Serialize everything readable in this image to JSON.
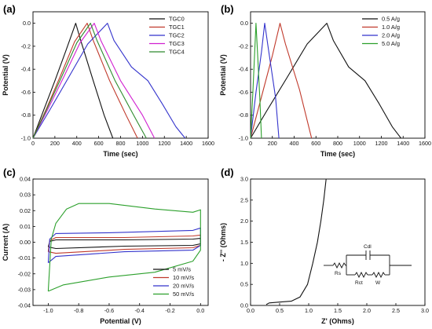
{
  "chart_data": [
    {
      "panel": "(a)",
      "type": "line",
      "xlabel": "Time (sec)",
      "ylabel": "Potential (V)",
      "xlim": [
        0,
        1600
      ],
      "ylim": [
        -1.0,
        0.1
      ],
      "xticks": [
        "0",
        "200",
        "400",
        "600",
        "800",
        "1000",
        "1200",
        "1400",
        "1600"
      ],
      "yticks": [
        "-1.0",
        "-0.8",
        "-0.6",
        "-0.4",
        "-0.2",
        "0.0"
      ],
      "legend_position": "top-right",
      "series": [
        {
          "name": "TGC0",
          "color": "#111111",
          "points": [
            [
              0,
              -1.0
            ],
            [
              100,
              -0.75
            ],
            [
              200,
              -0.5
            ],
            [
              300,
              -0.24
            ],
            [
              390,
              0.0
            ],
            [
              430,
              -0.13
            ],
            [
              550,
              -0.5
            ],
            [
              650,
              -0.8
            ],
            [
              730,
              -1.0
            ]
          ]
        },
        {
          "name": "TGC1",
          "color": "#c0392b",
          "points": [
            [
              0,
              -1.0
            ],
            [
              120,
              -0.75
            ],
            [
              250,
              -0.46
            ],
            [
              380,
              -0.16
            ],
            [
              495,
              0.0
            ],
            [
              550,
              -0.15
            ],
            [
              700,
              -0.5
            ],
            [
              850,
              -0.8
            ],
            [
              955,
              -1.0
            ]
          ]
        },
        {
          "name": "TGC2",
          "color": "#3333cc",
          "points": [
            [
              0,
              -1.0
            ],
            [
              150,
              -0.76
            ],
            [
              320,
              -0.48
            ],
            [
              500,
              -0.18
            ],
            [
              680,
              0.0
            ],
            [
              740,
              -0.15
            ],
            [
              900,
              -0.38
            ],
            [
              1050,
              -0.5
            ],
            [
              1180,
              -0.7
            ],
            [
              1305,
              -0.9
            ],
            [
              1390,
              -1.0
            ]
          ]
        },
        {
          "name": "TGC3",
          "color": "#d020d0",
          "points": [
            [
              0,
              -1.0
            ],
            [
              135,
              -0.75
            ],
            [
              280,
              -0.47
            ],
            [
              430,
              -0.17
            ],
            [
              560,
              0.0
            ],
            [
              620,
              -0.15
            ],
            [
              800,
              -0.5
            ],
            [
              1000,
              -0.8
            ],
            [
              1110,
              -1.0
            ]
          ]
        },
        {
          "name": "TGC4",
          "color": "#2e8b2e",
          "points": [
            [
              0,
              -1.0
            ],
            [
              125,
              -0.75
            ],
            [
              260,
              -0.47
            ],
            [
              400,
              -0.17
            ],
            [
              525,
              0.0
            ],
            [
              585,
              -0.15
            ],
            [
              750,
              -0.5
            ],
            [
              920,
              -0.8
            ],
            [
              1035,
              -1.0
            ]
          ]
        }
      ]
    },
    {
      "panel": "(b)",
      "type": "line",
      "xlabel": "Time (sec)",
      "ylabel": "Potential (V)",
      "xlim": [
        0,
        1600
      ],
      "ylim": [
        -1.0,
        0.1
      ],
      "xticks": [
        "0",
        "200",
        "400",
        "600",
        "800",
        "1000",
        "1200",
        "1400",
        "1600"
      ],
      "yticks": [
        "-1.0",
        "-0.8",
        "-0.6",
        "-0.4",
        "-0.2",
        "0.0"
      ],
      "legend_position": "top-right",
      "series": [
        {
          "name": "0.5 A/g",
          "color": "#111111",
          "points": [
            [
              0,
              -1.0
            ],
            [
              150,
              -0.76
            ],
            [
              330,
              -0.48
            ],
            [
              520,
              -0.18
            ],
            [
              700,
              0.0
            ],
            [
              760,
              -0.15
            ],
            [
              900,
              -0.38
            ],
            [
              1050,
              -0.5
            ],
            [
              1180,
              -0.7
            ],
            [
              1300,
              -0.9
            ],
            [
              1380,
              -1.0
            ]
          ]
        },
        {
          "name": "1.0 A/g",
          "color": "#c0392b",
          "points": [
            [
              0,
              -1.0
            ],
            [
              100,
              -0.64
            ],
            [
              200,
              -0.28
            ],
            [
              270,
              0.0
            ],
            [
              320,
              -0.18
            ],
            [
              450,
              -0.58
            ],
            [
              560,
              -1.0
            ]
          ]
        },
        {
          "name": "2.0 A/g",
          "color": "#3333cc",
          "points": [
            [
              0,
              -1.0
            ],
            [
              50,
              -0.6
            ],
            [
              100,
              -0.25
            ],
            [
              130,
              0.0
            ],
            [
              160,
              -0.2
            ],
            [
              230,
              -0.65
            ],
            [
              260,
              -1.0
            ]
          ]
        },
        {
          "name": "5.0 A/g",
          "color": "#2ca02c",
          "points": [
            [
              0,
              -1.0
            ],
            [
              20,
              -0.62
            ],
            [
              40,
              -0.2
            ],
            [
              50,
              0.0
            ],
            [
              62,
              -0.22
            ],
            [
              85,
              -0.65
            ],
            [
              100,
              -1.0
            ]
          ]
        }
      ]
    },
    {
      "panel": "(c)",
      "type": "line",
      "xlabel": "Potential (V)",
      "ylabel": "Current (A)",
      "xlim": [
        -1.1,
        0.05
      ],
      "ylim": [
        -0.04,
        0.04
      ],
      "xticks": [
        "-1.0",
        "-0.8",
        "-0.6",
        "-0.4",
        "-0.2",
        "0.0"
      ],
      "yticks": [
        "-0.04",
        "-0.03",
        "-0.02",
        "-0.01",
        "0.00",
        "0.01",
        "0.02",
        "0.03",
        "0.04"
      ],
      "legend_position": "bottom-right",
      "series": [
        {
          "name": "5 mV/s",
          "color": "#111111",
          "points": [
            [
              -1.0,
              -0.003
            ],
            [
              -0.99,
              0.0005
            ],
            [
              -0.95,
              0.0015
            ],
            [
              -0.5,
              0.0015
            ],
            [
              -0.05,
              0.002
            ],
            [
              0.0,
              0.0025
            ],
            [
              0.0,
              -0.001
            ],
            [
              -0.05,
              -0.002
            ],
            [
              -0.5,
              -0.0025
            ],
            [
              -0.95,
              -0.004
            ],
            [
              -1.0,
              -0.003
            ]
          ]
        },
        {
          "name": "10 mV/s",
          "color": "#c0392b",
          "points": [
            [
              -1.0,
              -0.006
            ],
            [
              -0.99,
              0.001
            ],
            [
              -0.95,
              0.003
            ],
            [
              -0.5,
              0.003
            ],
            [
              -0.05,
              0.004
            ],
            [
              0.0,
              0.0045
            ],
            [
              0.0,
              -0.002
            ],
            [
              -0.05,
              -0.0035
            ],
            [
              -0.5,
              -0.0045
            ],
            [
              -0.95,
              -0.007
            ],
            [
              -1.0,
              -0.006
            ]
          ]
        },
        {
          "name": "20 mV/s",
          "color": "#3333cc",
          "points": [
            [
              -1.0,
              -0.013
            ],
            [
              -0.99,
              0.002
            ],
            [
              -0.95,
              0.0055
            ],
            [
              -0.6,
              0.006
            ],
            [
              -0.05,
              0.0075
            ],
            [
              0.0,
              0.009
            ],
            [
              0.0,
              -0.002
            ],
            [
              -0.05,
              -0.005
            ],
            [
              -0.5,
              -0.006
            ],
            [
              -0.95,
              -0.009
            ],
            [
              -1.0,
              -0.013
            ]
          ]
        },
        {
          "name": "50 mV/s",
          "color": "#2ca02c",
          "points": [
            [
              -1.0,
              -0.031
            ],
            [
              -0.98,
              0.002
            ],
            [
              -0.95,
              0.012
            ],
            [
              -0.88,
              0.021
            ],
            [
              -0.8,
              0.0245
            ],
            [
              -0.6,
              0.0245
            ],
            [
              -0.3,
              0.021
            ],
            [
              -0.05,
              0.019
            ],
            [
              0.0,
              0.0205
            ],
            [
              0.0,
              -0.005
            ],
            [
              -0.05,
              -0.012
            ],
            [
              -0.3,
              -0.019
            ],
            [
              -0.6,
              -0.022
            ],
            [
              -0.9,
              -0.027
            ],
            [
              -1.0,
              -0.031
            ]
          ]
        }
      ]
    },
    {
      "panel": "(d)",
      "type": "line",
      "xlabel": "Z' (Ohms)",
      "ylabel": "- Z'' (Ohms)",
      "xlim": [
        0.0,
        3.0
      ],
      "ylim": [
        0.0,
        3.0
      ],
      "xticks": [
        "0.0",
        "0.5",
        "1.0",
        "1.5",
        "2.0",
        "2.5",
        "3.0"
      ],
      "yticks": [
        "0.0",
        "0.5",
        "1.0",
        "1.5",
        "2.0",
        "2.5",
        "3.0"
      ],
      "series": [
        {
          "color": "#111111",
          "points": [
            [
              0.27,
              0.02
            ],
            [
              0.32,
              0.06
            ],
            [
              0.5,
              0.08
            ],
            [
              0.7,
              0.1
            ],
            [
              0.85,
              0.2
            ],
            [
              0.98,
              0.5
            ],
            [
              1.07,
              1.0
            ],
            [
              1.15,
              1.5
            ],
            [
              1.21,
              2.0
            ],
            [
              1.26,
              2.5
            ],
            [
              1.3,
              3.0
            ]
          ]
        }
      ],
      "circuit_labels": {
        "rs": "Rs",
        "rct": "Rct",
        "cdl": "Cdl",
        "w": "W"
      }
    }
  ],
  "panels": [
    {
      "label": "(a)"
    },
    {
      "label": "(b)"
    },
    {
      "label": "(c)"
    },
    {
      "label": "(d)"
    }
  ]
}
